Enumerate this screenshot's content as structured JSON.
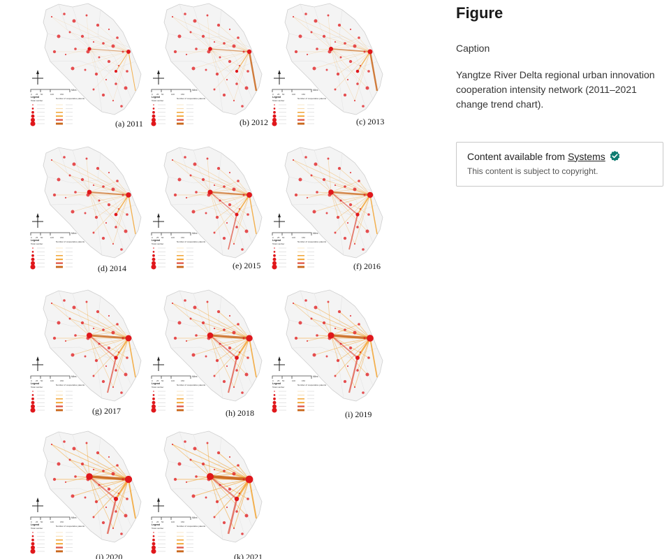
{
  "sidebar": {
    "heading": "Figure",
    "caption_label": "Caption",
    "caption_text": "Yangtze River Delta regional urban innovation cooperation intensity network (2011–2021 change trend chart).",
    "source_prefix": "Content available from",
    "source_link": "Systems",
    "copyright_note": "This content is subject to copyright."
  },
  "figure": {
    "panels": [
      {
        "label": "(a) 2011"
      },
      {
        "label": "(b) 2012"
      },
      {
        "label": "(c) 2013"
      },
      {
        "label": "(d) 2014"
      },
      {
        "label": "(e) 2015"
      },
      {
        "label": "(f) 2016"
      },
      {
        "label": "(g) 2017"
      },
      {
        "label": "(h) 2018"
      },
      {
        "label": "(i) 2019"
      },
      {
        "label": "(j) 2020"
      },
      {
        "label": "(k) 2021"
      }
    ],
    "legend_title": "Legend",
    "legend_total": "Total number",
    "legend_links": "Number of cooperative patents",
    "scale_unit": "Miles",
    "scale_ticks": [
      "0",
      "25",
      "50",
      "100",
      "150"
    ]
  },
  "colors": {
    "node": "#e0171b",
    "strong_link": "#c9661a",
    "mid_link": "#f2a330",
    "red_link": "#e05a4a",
    "map_fill": "#f4f4f4",
    "map_stroke": "#cfcfcf",
    "verified": "#0e7c71"
  },
  "icons": {
    "compass": "compass-icon",
    "verified": "verified-badge-icon"
  }
}
